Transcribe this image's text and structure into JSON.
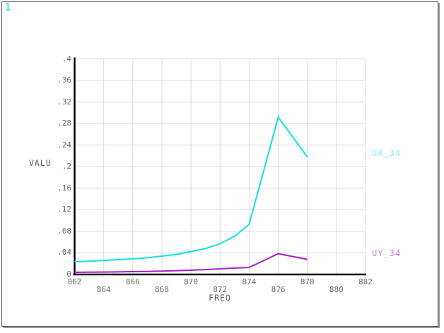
{
  "window": {
    "plot_id": "1",
    "plot_id_color": "#49dcee",
    "background": "#ffffff",
    "border_color": "#555555"
  },
  "colors": {
    "gridline": "#dcdcdc",
    "axis": "#000000",
    "tick_text": "#6b6b6b",
    "axis_title_text": "#5d5d5d"
  },
  "chart_data": {
    "type": "line",
    "title": "",
    "xlabel": "FREQ",
    "ylabel": "VALU",
    "xlim": [
      862,
      882
    ],
    "ylim": [
      0,
      0.4
    ],
    "grid": true,
    "legend_position": "right",
    "x_ticks": [
      862,
      864,
      866,
      868,
      870,
      872,
      874,
      876,
      878,
      880,
      882
    ],
    "x_tick_labels": [
      "862",
      "864",
      "866",
      "868",
      "870",
      "872",
      "874",
      "876",
      "878",
      "880",
      "882"
    ],
    "y_ticks": [
      0,
      0.04,
      0.08,
      0.12,
      0.16,
      0.2,
      0.24,
      0.28,
      0.32,
      0.36,
      0.4
    ],
    "y_tick_labels": [
      "0",
      ".04",
      ".08",
      ".12",
      ".16",
      ".2",
      ".24",
      ".28",
      ".32",
      ".36",
      ".4"
    ],
    "series": [
      {
        "name": "UX_34",
        "color": "#0fe2e6",
        "label_color": "#7df0fa",
        "x": [
          862,
          863,
          864,
          865,
          866,
          867,
          868,
          869,
          870,
          871,
          872,
          873,
          874,
          876,
          878
        ],
        "y": [
          0.0235,
          0.0245,
          0.026,
          0.0275,
          0.029,
          0.031,
          0.034,
          0.037,
          0.0425,
          0.048,
          0.057,
          0.071,
          0.093,
          0.292,
          0.218
        ]
      },
      {
        "name": "UY_34",
        "color": "#a81ccb",
        "label_color": "#c97df0",
        "x": [
          862,
          863,
          864,
          865,
          866,
          867,
          868,
          869,
          870,
          871,
          872,
          873,
          874,
          876,
          878
        ],
        "y": [
          0.004,
          0.0042,
          0.0045,
          0.0048,
          0.0052,
          0.0056,
          0.0062,
          0.007,
          0.0078,
          0.009,
          0.0105,
          0.0118,
          0.013,
          0.0385,
          0.028
        ]
      }
    ]
  }
}
